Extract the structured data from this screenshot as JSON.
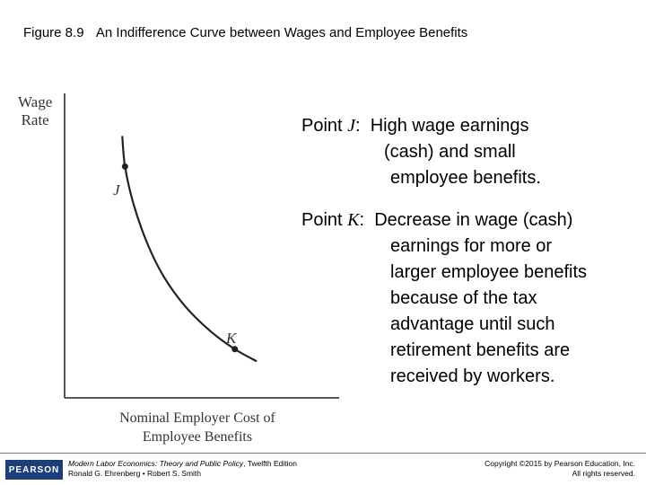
{
  "figure": {
    "number": "Figure 8.9",
    "title": "An Indifference Curve between Wages and Employee Benefits"
  },
  "chart_data": {
    "type": "line",
    "title": "",
    "ylabel_line1": "Wage",
    "ylabel_line2": "Rate",
    "xlabel_line1": "Nominal Employer Cost of",
    "xlabel_line2": "Employee Benefits",
    "xlim": [
      0,
      10
    ],
    "ylim": [
      0,
      10
    ],
    "grid": false,
    "series": [
      {
        "x": [
          2.1,
          2.2,
          2.5,
          3.0,
          3.6,
          4.4,
          5.3,
          6.2,
          7.0
        ],
        "y": [
          8.6,
          7.6,
          6.4,
          5.1,
          4.0,
          3.0,
          2.2,
          1.6,
          1.2
        ]
      }
    ],
    "points": [
      {
        "label": "J",
        "x": 2.2,
        "y": 7.6
      },
      {
        "label": "K",
        "x": 6.2,
        "y": 1.6
      }
    ]
  },
  "notes": {
    "j": {
      "prefix": "Point ",
      "letter": "J",
      "colon": ":",
      "lines": [
        "High wage earnings",
        "(cash) and small",
        "employee benefits."
      ]
    },
    "k": {
      "prefix": "Point ",
      "letter": "K",
      "colon": ":",
      "lines": [
        "Decrease in wage (cash)",
        "earnings for more or",
        "larger employee benefits",
        "because of the tax",
        "advantage until such",
        "retirement benefits are",
        "received by workers."
      ]
    }
  },
  "footer": {
    "logo": "PEARSON",
    "book_title": "Modern Labor Economics: Theory and Public Policy",
    "book_edition": ", Twelfth Edition",
    "authors": "Ronald G. Ehrenberg • Robert S. Smith",
    "copyright": "Copyright ©2015 by Pearson Education, Inc.",
    "rights": "All rights reserved."
  }
}
